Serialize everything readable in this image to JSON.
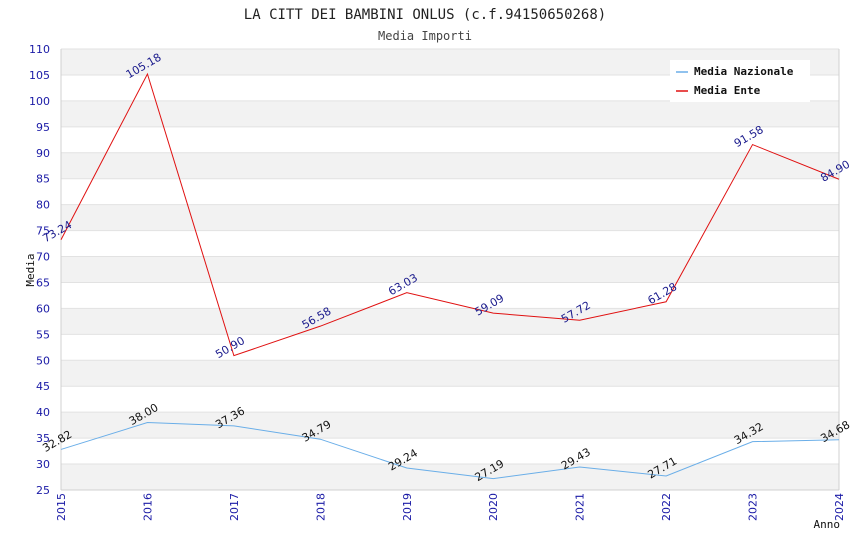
{
  "chart_data": {
    "type": "line",
    "title": "LA CITT DEI BAMBINI ONLUS (c.f.94150650268)",
    "subtitle": "Media Importi",
    "xlabel": "Anno",
    "ylabel": "Media",
    "ylim": [
      25,
      110
    ],
    "ytick_step": 5,
    "grid": "horizontal bands",
    "legend_position": "top-right",
    "x": [
      "2015",
      "2016",
      "2017",
      "2018",
      "2019",
      "2020",
      "2021",
      "2022",
      "2023",
      "2024"
    ],
    "series": [
      {
        "name": "Media Nazionale",
        "color": "#6aaee8",
        "values": [
          32.82,
          38.0,
          37.36,
          34.79,
          29.24,
          27.19,
          29.43,
          27.71,
          34.32,
          34.68
        ],
        "labels": [
          "32.82",
          "38.00",
          "37.36",
          "34.79",
          "29.24",
          "27.19",
          "29.43",
          "27.71",
          "34.32",
          "34.68"
        ]
      },
      {
        "name": "Media Ente",
        "color": "#e01010",
        "values": [
          73.24,
          105.18,
          50.9,
          56.58,
          63.03,
          59.09,
          57.72,
          61.28,
          91.58,
          84.9
        ],
        "labels": [
          "73.24",
          "105.18",
          "50.90",
          "56.58",
          "63.03",
          "59.09",
          "57.72",
          "61.28",
          "91.58",
          "84.90"
        ]
      }
    ]
  }
}
